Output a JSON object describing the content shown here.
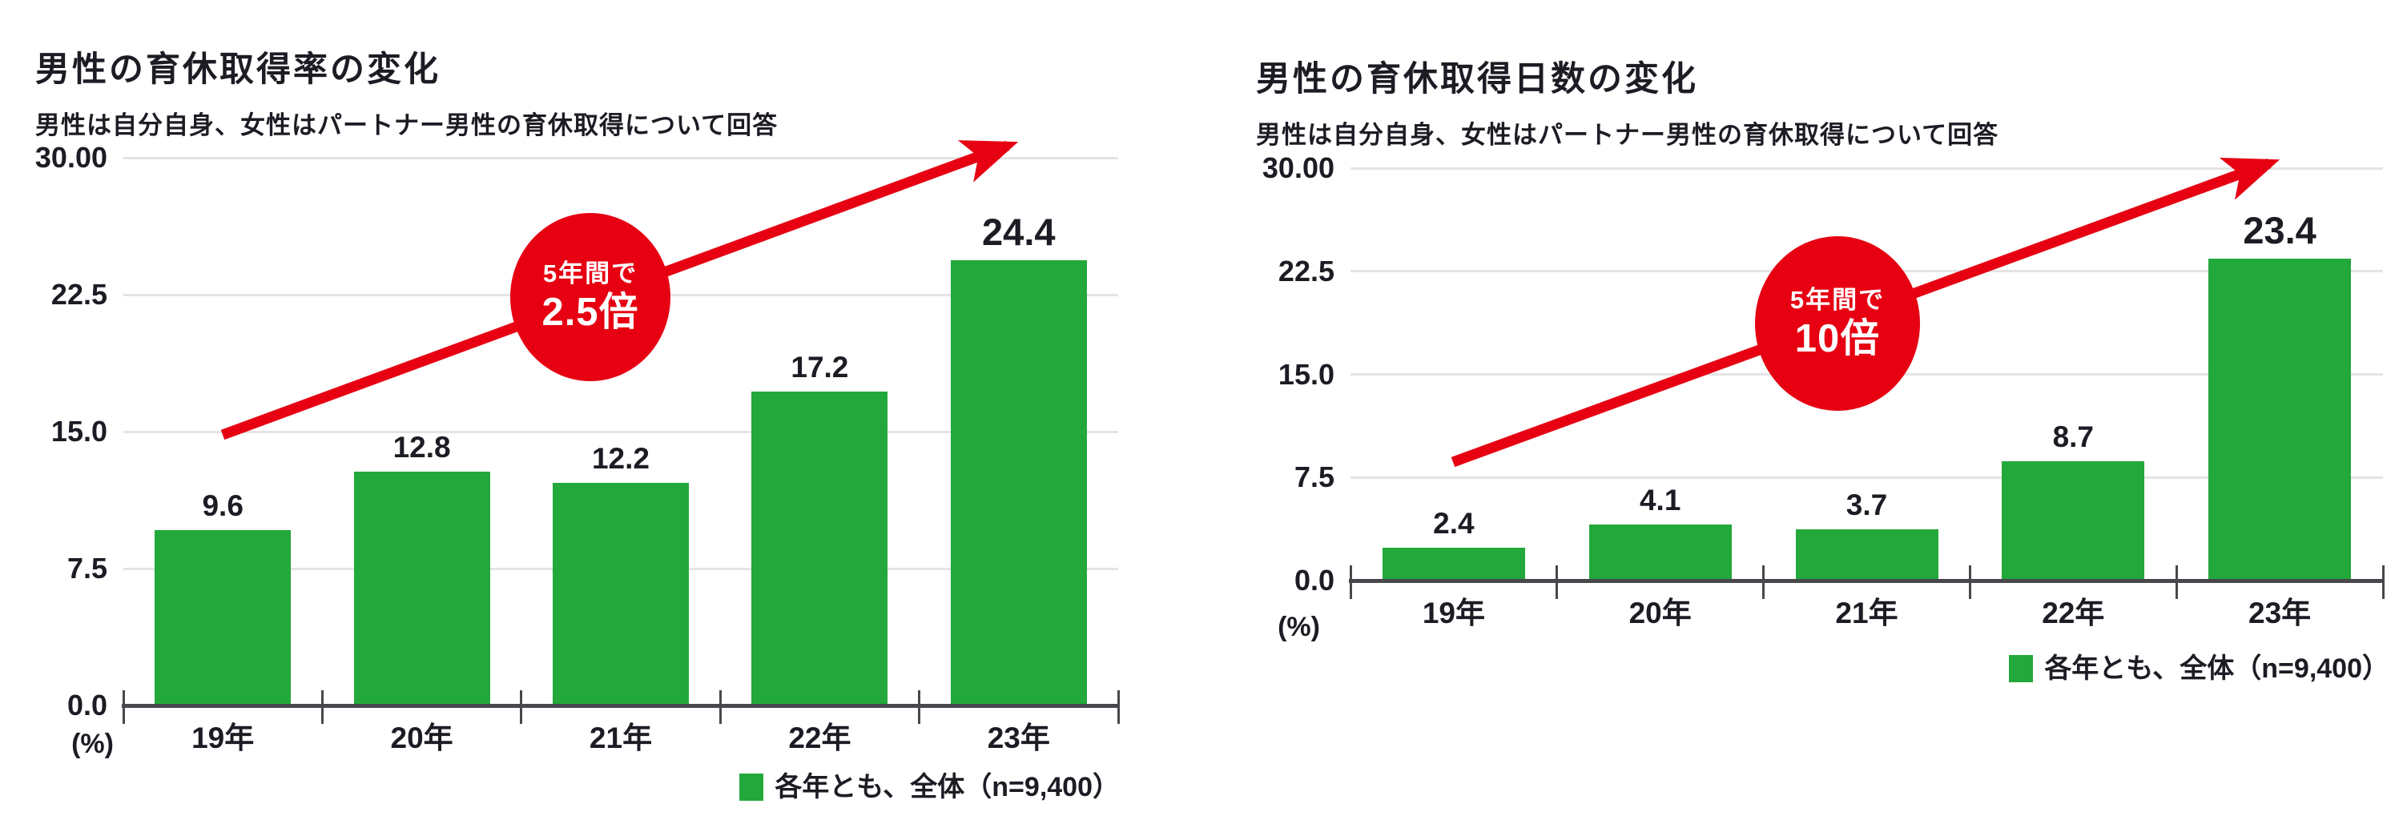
{
  "colors": {
    "bar_green": "#23a83b",
    "accent_red": "#e60012",
    "text_dark": "#1c1c24",
    "gridline_gray": "#e4e4e5",
    "axis_gray": "#47474c"
  },
  "chart_data": [
    {
      "type": "bar",
      "title": "男性の育休取得率の変化",
      "subtitle": "男性は自分自身、女性はパートナー男性の育休取得について回答",
      "categories": [
        "19年",
        "20年",
        "21年",
        "22年",
        "23年"
      ],
      "values": [
        9.6,
        12.8,
        12.2,
        17.2,
        24.4
      ],
      "value_labels": [
        "9.6",
        "12.8",
        "12.2",
        "17.2",
        "24.4"
      ],
      "ylim": [
        0,
        30
      ],
      "yticks": [
        {
          "value": 0,
          "label": "0.0"
        },
        {
          "value": 7.5,
          "label": "7.5"
        },
        {
          "value": 15,
          "label": "15.0"
        },
        {
          "value": 22.5,
          "label": "22.5"
        },
        {
          "value": 30,
          "label": "30.00"
        }
      ],
      "unit_label": "(%)",
      "grid": true,
      "bar_color": "#23a83b",
      "legend_position": "bottom-right",
      "legend": {
        "label": "各年とも、全体（n=9,400）",
        "swatch_color": "#23a83b"
      },
      "badge": {
        "line1": "5年間で",
        "line2": "2.5倍",
        "color": "#e60012"
      },
      "annotation": "red upward trend arrow from first bar to last bar"
    },
    {
      "type": "bar",
      "title": "男性の育休取得日数の変化",
      "subtitle": "男性は自分自身、女性はパートナー男性の育休取得について回答",
      "categories": [
        "19年",
        "20年",
        "21年",
        "22年",
        "23年"
      ],
      "values": [
        2.4,
        4.1,
        3.7,
        8.7,
        23.4
      ],
      "value_labels": [
        "2.4",
        "4.1",
        "3.7",
        "8.7",
        "23.4"
      ],
      "ylim": [
        0,
        30
      ],
      "yticks": [
        {
          "value": 0,
          "label": "0.0"
        },
        {
          "value": 7.5,
          "label": "7.5"
        },
        {
          "value": 15,
          "label": "15.0"
        },
        {
          "value": 22.5,
          "label": "22.5"
        },
        {
          "value": 30,
          "label": "30.00"
        }
      ],
      "unit_label": "(%)",
      "grid": true,
      "bar_color": "#23a83b",
      "legend_position": "bottom-right",
      "legend": {
        "label": "各年とも、全体（n=9,400）",
        "swatch_color": "#23a83b"
      },
      "badge": {
        "line1": "5年間で",
        "line2": "10倍",
        "color": "#e60012"
      },
      "annotation": "red upward trend arrow from first bar to last bar"
    }
  ]
}
